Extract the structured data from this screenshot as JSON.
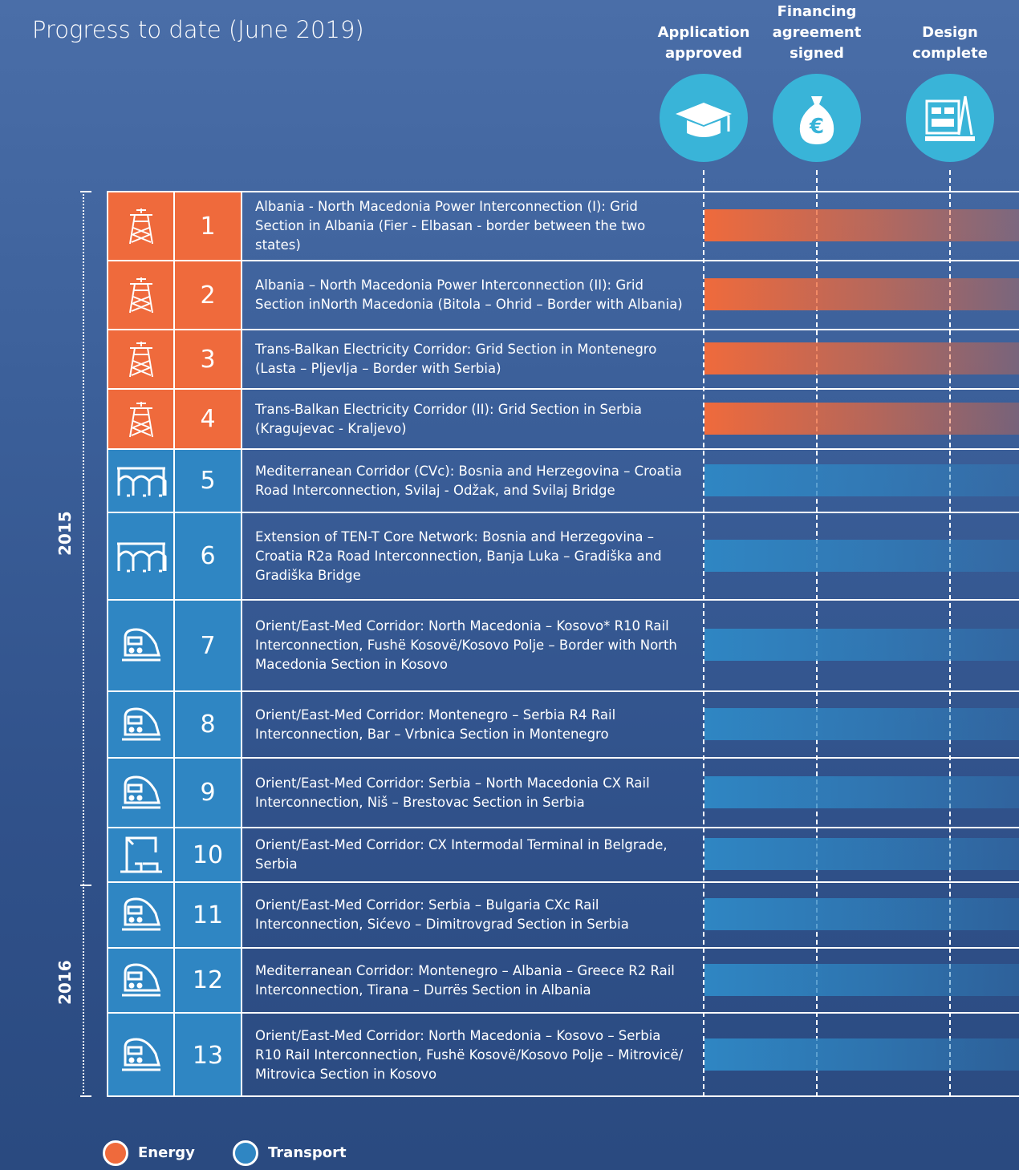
{
  "title": "Progress to date (June 2019)",
  "stages": [
    "Application approved",
    "Financing agreement signed",
    "Design complete"
  ],
  "years": [
    "2015",
    "2016"
  ],
  "groups": [
    {
      "name": "Energy",
      "color": "#ef6a3c",
      "projects": [
        {
          "number": "1",
          "title": "Albania - North Macedonia Power Interconnection (I): Grid Section in Albania (Fier - Elbasan - border between the two states)"
        },
        {
          "number": "2",
          "title": "Albania – North Macedonia Power Interconnection (II): Grid Section inNorth Macedonia (Bitola – Ohrid – Border with Albania)"
        },
        {
          "number": "3",
          "title": "Trans-Balkan Electricity Corridor: Grid Section in Montenegro (Lasta – Pljevlja – Border with Serbia)"
        },
        {
          "number": "4",
          "title": "Trans-Balkan Electricity Corridor (II): Grid Section in Serbia (Kragujevac - Kraljevo)"
        }
      ]
    },
    {
      "name": "Transport",
      "color": "#2f86c3",
      "projects": [
        {
          "number": "5",
          "title": "Mediterranean Corridor (CVc): Bosnia and Herzegovina – Croatia Road Interconnection, Svilaj - Odžak, and Svilaj Bridge"
        },
        {
          "number": "6",
          "title": "Extension of TEN-T Core Network: Bosnia and Herzegovina – Croatia R2a Road Interconnection, Banja Luka – Gradiška and Gradiška Bridge"
        },
        {
          "number": "7",
          "title": "Orient/East-Med Corridor: North Macedonia – Kosovo* R10 Rail Interconnection, Fushë Kosovë/Kosovo Polje – Border with North Macedonia Section in Kosovo"
        },
        {
          "number": "8",
          "title": "Orient/East-Med Corridor: Montenegro – Serbia R4 Rail Interconnection, Bar – Vrbnica Section in Montenegro"
        },
        {
          "number": "9",
          "title": "Orient/East-Med Corridor: Serbia – North Macedonia CX Rail Interconnection, Niš – Brestovac Section in Serbia"
        },
        {
          "number": "10",
          "title": "Orient/East-Med Corridor: CX Intermodal Terminal in Belgrade, Serbia"
        },
        {
          "number": "11",
          "title": "Orient/East-Med Corridor: Serbia – Bulgaria CXc Rail Interconnection, Sićevo – Dimitrovgrad Section in Serbia"
        },
        {
          "number": "12",
          "title": "Mediterranean Corridor: Montenegro – Albania – Greece R2 Rail Interconnection, Tirana – Durrës Section in Albania"
        },
        {
          "number": "13",
          "title": "Orient/East-Med Corridor: North Macedonia – Kosovo – Serbia R10 Rail Interconnection, Fushë Kosovë/Kosovo Polje – Mitrovicë/ Mitrovica Section in Kosovo"
        }
      ]
    }
  ]
}
